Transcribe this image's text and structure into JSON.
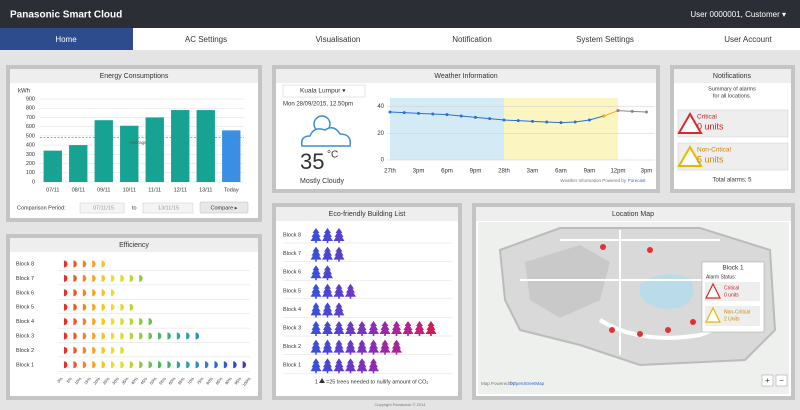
{
  "header": {
    "brand": "Panasonic Smart Cloud",
    "user": "User 0000001, Customer ▾"
  },
  "nav": [
    "Home",
    "AC Settings",
    "Visualisation",
    "Notification",
    "System Settings",
    "User Account"
  ],
  "chart_data": [
    {
      "type": "bar",
      "title": "Energy Consumptions",
      "ylabel": "kWh",
      "categories": [
        "07/11",
        "08/11",
        "09/11",
        "10/11",
        "11/11",
        "12/11",
        "13/11",
        "Today"
      ],
      "values": [
        340,
        400,
        670,
        610,
        700,
        780,
        780,
        560
      ],
      "colors": [
        "#16a393",
        "#16a393",
        "#16a393",
        "#16a393",
        "#16a393",
        "#16a393",
        "#16a393",
        "#3a8fe4"
      ],
      "ylim": [
        0,
        900
      ],
      "yticks": [
        0,
        100,
        200,
        300,
        400,
        500,
        600,
        700,
        800,
        900
      ],
      "grid": true,
      "annotations": [
        {
          "text": "Average",
          "value": 480
        }
      ]
    },
    {
      "type": "line",
      "title": "Weather Information",
      "x": [
        0,
        0.5,
        1,
        1.5,
        2,
        2.5,
        3,
        3.5,
        4,
        4.5,
        5,
        5.5,
        6,
        6.5,
        7,
        7.5,
        8,
        8.5,
        9
      ],
      "series": [
        {
          "color": "#2a6fd6",
          "values": [
            36,
            35.5,
            35,
            34.5,
            34,
            33,
            32,
            31,
            30,
            29.5,
            29,
            28.5,
            28,
            28.5,
            30,
            33,
            null,
            null,
            null
          ]
        },
        {
          "color": "#f5a623",
          "values": [
            null,
            null,
            null,
            null,
            null,
            null,
            null,
            null,
            null,
            null,
            null,
            null,
            null,
            null,
            null,
            33,
            37,
            null,
            null
          ]
        },
        {
          "color": "#888888",
          "values": [
            null,
            null,
            null,
            null,
            null,
            null,
            null,
            null,
            null,
            null,
            null,
            null,
            null,
            null,
            null,
            null,
            37,
            36.5,
            36
          ]
        }
      ],
      "bands": [
        {
          "from": 0,
          "to": 4,
          "color": "#d4ebf6"
        },
        {
          "from": 4,
          "to": 8,
          "color": "#fbf5c2"
        }
      ],
      "xlim": [
        0,
        9.3
      ],
      "xticks": [
        {
          "value": 0,
          "label": "27th"
        },
        {
          "value": 1,
          "label": "3pm"
        },
        {
          "value": 2,
          "label": "6pm"
        },
        {
          "value": 3,
          "label": "9pm"
        },
        {
          "value": 4,
          "label": "28th"
        },
        {
          "value": 5,
          "label": "3am"
        },
        {
          "value": 6,
          "label": "6am"
        },
        {
          "value": 7,
          "label": "9am"
        },
        {
          "value": 8,
          "label": "12pm"
        },
        {
          "value": 9,
          "label": "3pm"
        }
      ],
      "ylim": [
        0,
        42
      ],
      "yticks": [
        0,
        20,
        40
      ],
      "grid": true
    },
    {
      "type": "pictograph",
      "title": "Efficiency",
      "categories": [
        "Block 8",
        "Block 7",
        "Block 6",
        "Block 5",
        "Block 4",
        "Block 3",
        "Block 2",
        "Block 1"
      ],
      "values": [
        25,
        45,
        30,
        40,
        50,
        75,
        35,
        100
      ],
      "xlim": [
        0,
        100
      ],
      "xticks": [
        {
          "value": 0,
          "label": "0%"
        },
        {
          "value": 5,
          "label": "5%"
        },
        {
          "value": 10,
          "label": "10%"
        },
        {
          "value": 15,
          "label": "15%"
        },
        {
          "value": 20,
          "label": "20%"
        },
        {
          "value": 25,
          "label": "25%"
        },
        {
          "value": 30,
          "label": "30%"
        },
        {
          "value": 35,
          "label": "35%"
        },
        {
          "value": 40,
          "label": "40%"
        },
        {
          "value": 45,
          "label": "45%"
        },
        {
          "value": 50,
          "label": "50%"
        },
        {
          "value": 55,
          "label": "55%"
        },
        {
          "value": 60,
          "label": "60%"
        },
        {
          "value": 65,
          "label": "65%"
        },
        {
          "value": 70,
          "label": "70%"
        },
        {
          "value": 75,
          "label": "75%"
        },
        {
          "value": 80,
          "label": "80%"
        },
        {
          "value": 85,
          "label": "85%"
        },
        {
          "value": 90,
          "label": "90%"
        },
        {
          "value": 95,
          "label": "95%"
        },
        {
          "value": 100,
          "label": "100%"
        }
      ],
      "colors": [
        "#e8302b",
        "#ef5a24",
        "#f5822a",
        "#f8a326",
        "#fac31f",
        "#f5dc22",
        "#d8e021",
        "#b6d630",
        "#8ecb3c",
        "#6cc04a",
        "#4db85a",
        "#3ab07a",
        "#2ea894",
        "#2a9fae",
        "#2a8fc4",
        "#2d7ed2",
        "#3169d8",
        "#3657d9",
        "#3b46d6",
        "#4038cc"
      ]
    },
    {
      "type": "pictograph",
      "title": "Eco-friendly Building List",
      "categories": [
        "Block 8",
        "Block 7",
        "Block 6",
        "Block 5",
        "Block 4",
        "Block 3",
        "Block 2",
        "Block 1"
      ],
      "values": [
        3,
        3,
        2,
        4,
        3,
        11,
        8,
        6
      ],
      "colors": [
        "#3b4fd8",
        "#4a46d4",
        "#5a3fcf",
        "#6a38c8",
        "#7a32c0",
        "#8a2cb6",
        "#9a27aa",
        "#a9239c",
        "#b8208c",
        "#c51e7a",
        "#d01c56"
      ],
      "note_prefix": "1",
      "note": "=25 trees needed to nullify amount of CO₂"
    }
  ],
  "energy_controls": {
    "label": "Comparison Period:",
    "from": "07/11/15",
    "to_label": "to",
    "to": "13/11/15",
    "button": "Compare ▸"
  },
  "weather": {
    "city": "Kuala Lumpur ▾",
    "datetime": "Mon 28/09/2015, 12.50pm",
    "temperature": "35",
    "unit": "°C",
    "condition": "Mostly Cloudy",
    "credit": "Weather Information Powered by",
    "credit_link": "Forecast"
  },
  "notifications": {
    "title": "Notifications",
    "summary": [
      "Summary of alarms",
      "for all locations."
    ],
    "critical": "Critical",
    "critical_units": "0 units",
    "noncritical": "Non-Critical",
    "noncritical_units": "5 units",
    "total": "Total alarms: 5"
  },
  "map": {
    "title": "Location Map",
    "popup": {
      "title": "Block 1",
      "status": "Alarm Status:",
      "critical": "Critical",
      "critical_units": "0 units",
      "noncritical": "Non-Critical",
      "noncritical_units": "2 Units"
    },
    "credit": "Map Powered by",
    "credit_link": "©OpenStreetMap",
    "zoom_in": "+",
    "zoom_out": "−"
  },
  "footer": "Copyright Panasonic © 2014"
}
